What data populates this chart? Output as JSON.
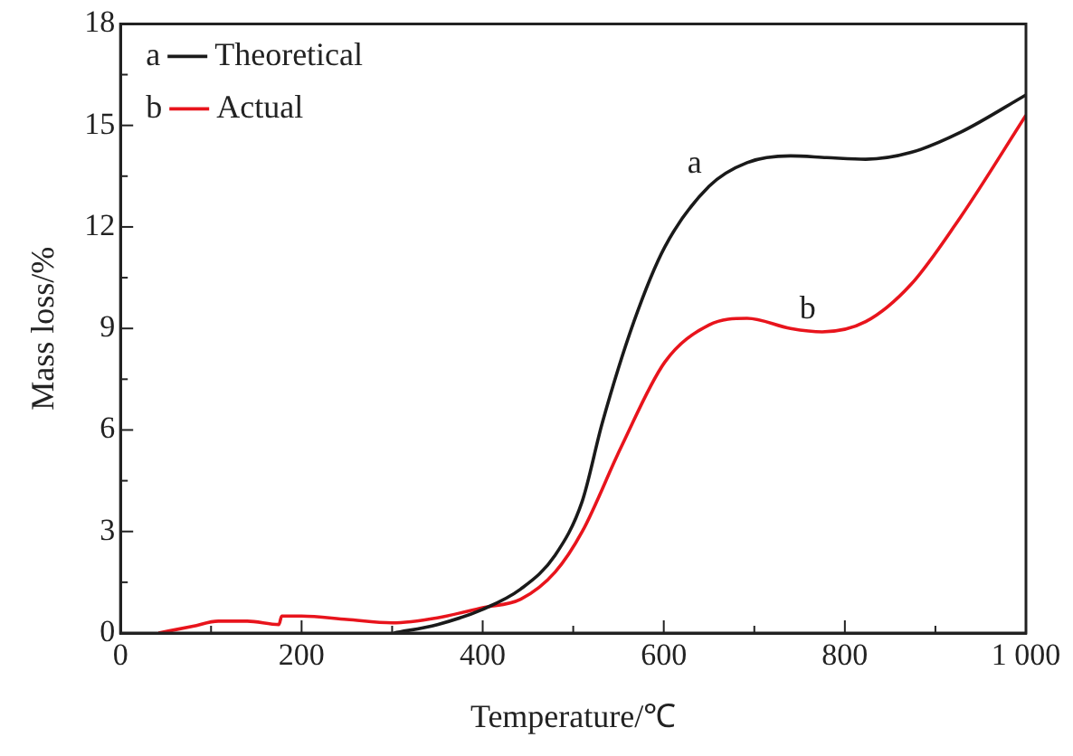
{
  "chart_data": {
    "type": "line",
    "xlabel": "Temperature/℃",
    "ylabel": "Mass loss/%",
    "xlim": [
      0,
      1000
    ],
    "xticks": [
      0,
      {
        "value": 100,
        "label": null
      },
      200,
      {
        "value": 300,
        "label": null
      },
      400,
      {
        "value": 500,
        "label": null
      },
      600,
      {
        "value": 700,
        "label": null
      },
      800,
      {
        "value": 900,
        "label": null
      },
      {
        "value": 1000,
        "label": "1 000"
      }
    ],
    "ylim": [
      0,
      18
    ],
    "yticks": [
      0,
      {
        "value": 1.5,
        "label": null
      },
      3,
      {
        "value": 4.5,
        "label": null
      },
      6,
      {
        "value": 7.5,
        "label": null
      },
      9,
      {
        "value": 10.5,
        "label": null
      },
      12,
      {
        "value": 13.5,
        "label": null
      },
      15,
      {
        "value": 16.5,
        "label": null
      },
      18
    ],
    "grid": false,
    "legend": "top left",
    "marker": "none",
    "line_style": "solid",
    "series": [
      {
        "name": "Theoretical",
        "color": "#1a1a1a",
        "x": [
          302,
          350,
          400,
          442,
          480,
          510,
          532,
          567,
          601,
          650,
          692,
          740,
          780,
          823,
          873,
          928,
          1000
        ],
        "values": [
          0,
          0.25,
          0.7,
          1.3,
          2.3,
          3.9,
          6.2,
          9.2,
          11.4,
          13.2,
          13.9,
          14.1,
          14.05,
          14.0,
          14.2,
          14.8,
          15.9
        ]
      },
      {
        "name": "Actual",
        "color": "#e8141c",
        "x": [
          42,
          80,
          108,
          140,
          175,
          178,
          200,
          250,
          300,
          350,
          400,
          442,
          480,
          510,
          553,
          601,
          650,
          692,
          740,
          775,
          823,
          873,
          928,
          1000
        ],
        "values": [
          0,
          0.2,
          0.35,
          0.35,
          0.25,
          0.5,
          0.5,
          0.4,
          0.3,
          0.45,
          0.75,
          1.0,
          1.8,
          3.0,
          5.5,
          8.0,
          9.1,
          9.3,
          9.0,
          8.9,
          9.2,
          10.3,
          12.3,
          15.3
        ]
      }
    ],
    "annotations": [
      {
        "text": "a",
        "x": 650,
        "y": 13.2
      },
      {
        "text": "b",
        "x": 775,
        "y": 8.9
      }
    ]
  }
}
